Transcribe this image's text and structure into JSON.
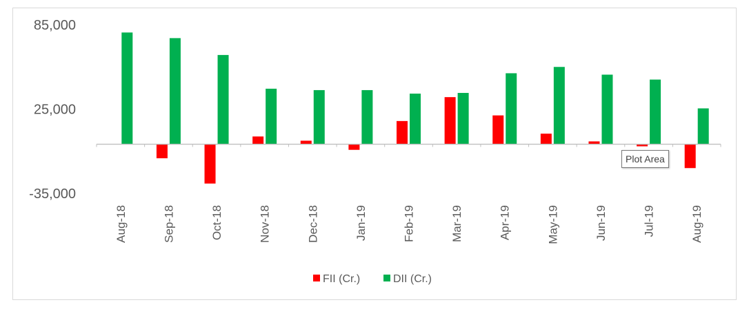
{
  "chart_data": {
    "type": "bar",
    "categories": [
      "Aug-18",
      "Sep-18",
      "Oct-18",
      "Nov-18",
      "Dec-18",
      "Jan-19",
      "Feb-19",
      "Mar-19",
      "Apr-19",
      "May-19",
      "Jun-19",
      "Jul-19",
      "Aug-19"
    ],
    "series": [
      {
        "name": "FII (Cr.)",
        "color": "#ff0000",
        "values": [
          0,
          -10000,
          -28000,
          5500,
          2500,
          -4000,
          16500,
          33500,
          20500,
          7500,
          2000,
          -1500,
          -17000
        ]
      },
      {
        "name": "DII (Cr.)",
        "color": "#00b050",
        "values": [
          79500,
          75500,
          63500,
          39500,
          38500,
          38500,
          36000,
          36500,
          50500,
          55000,
          49500,
          46000,
          25500
        ]
      }
    ],
    "yticks": [
      85000,
      25000,
      -35000
    ],
    "ytick_labels": [
      "85,000",
      "25,000",
      "-35,000"
    ],
    "ylim": [
      -35000,
      85000
    ],
    "legend_position": "bottom",
    "grid": false
  },
  "tooltip": {
    "text": "Plot Area"
  }
}
